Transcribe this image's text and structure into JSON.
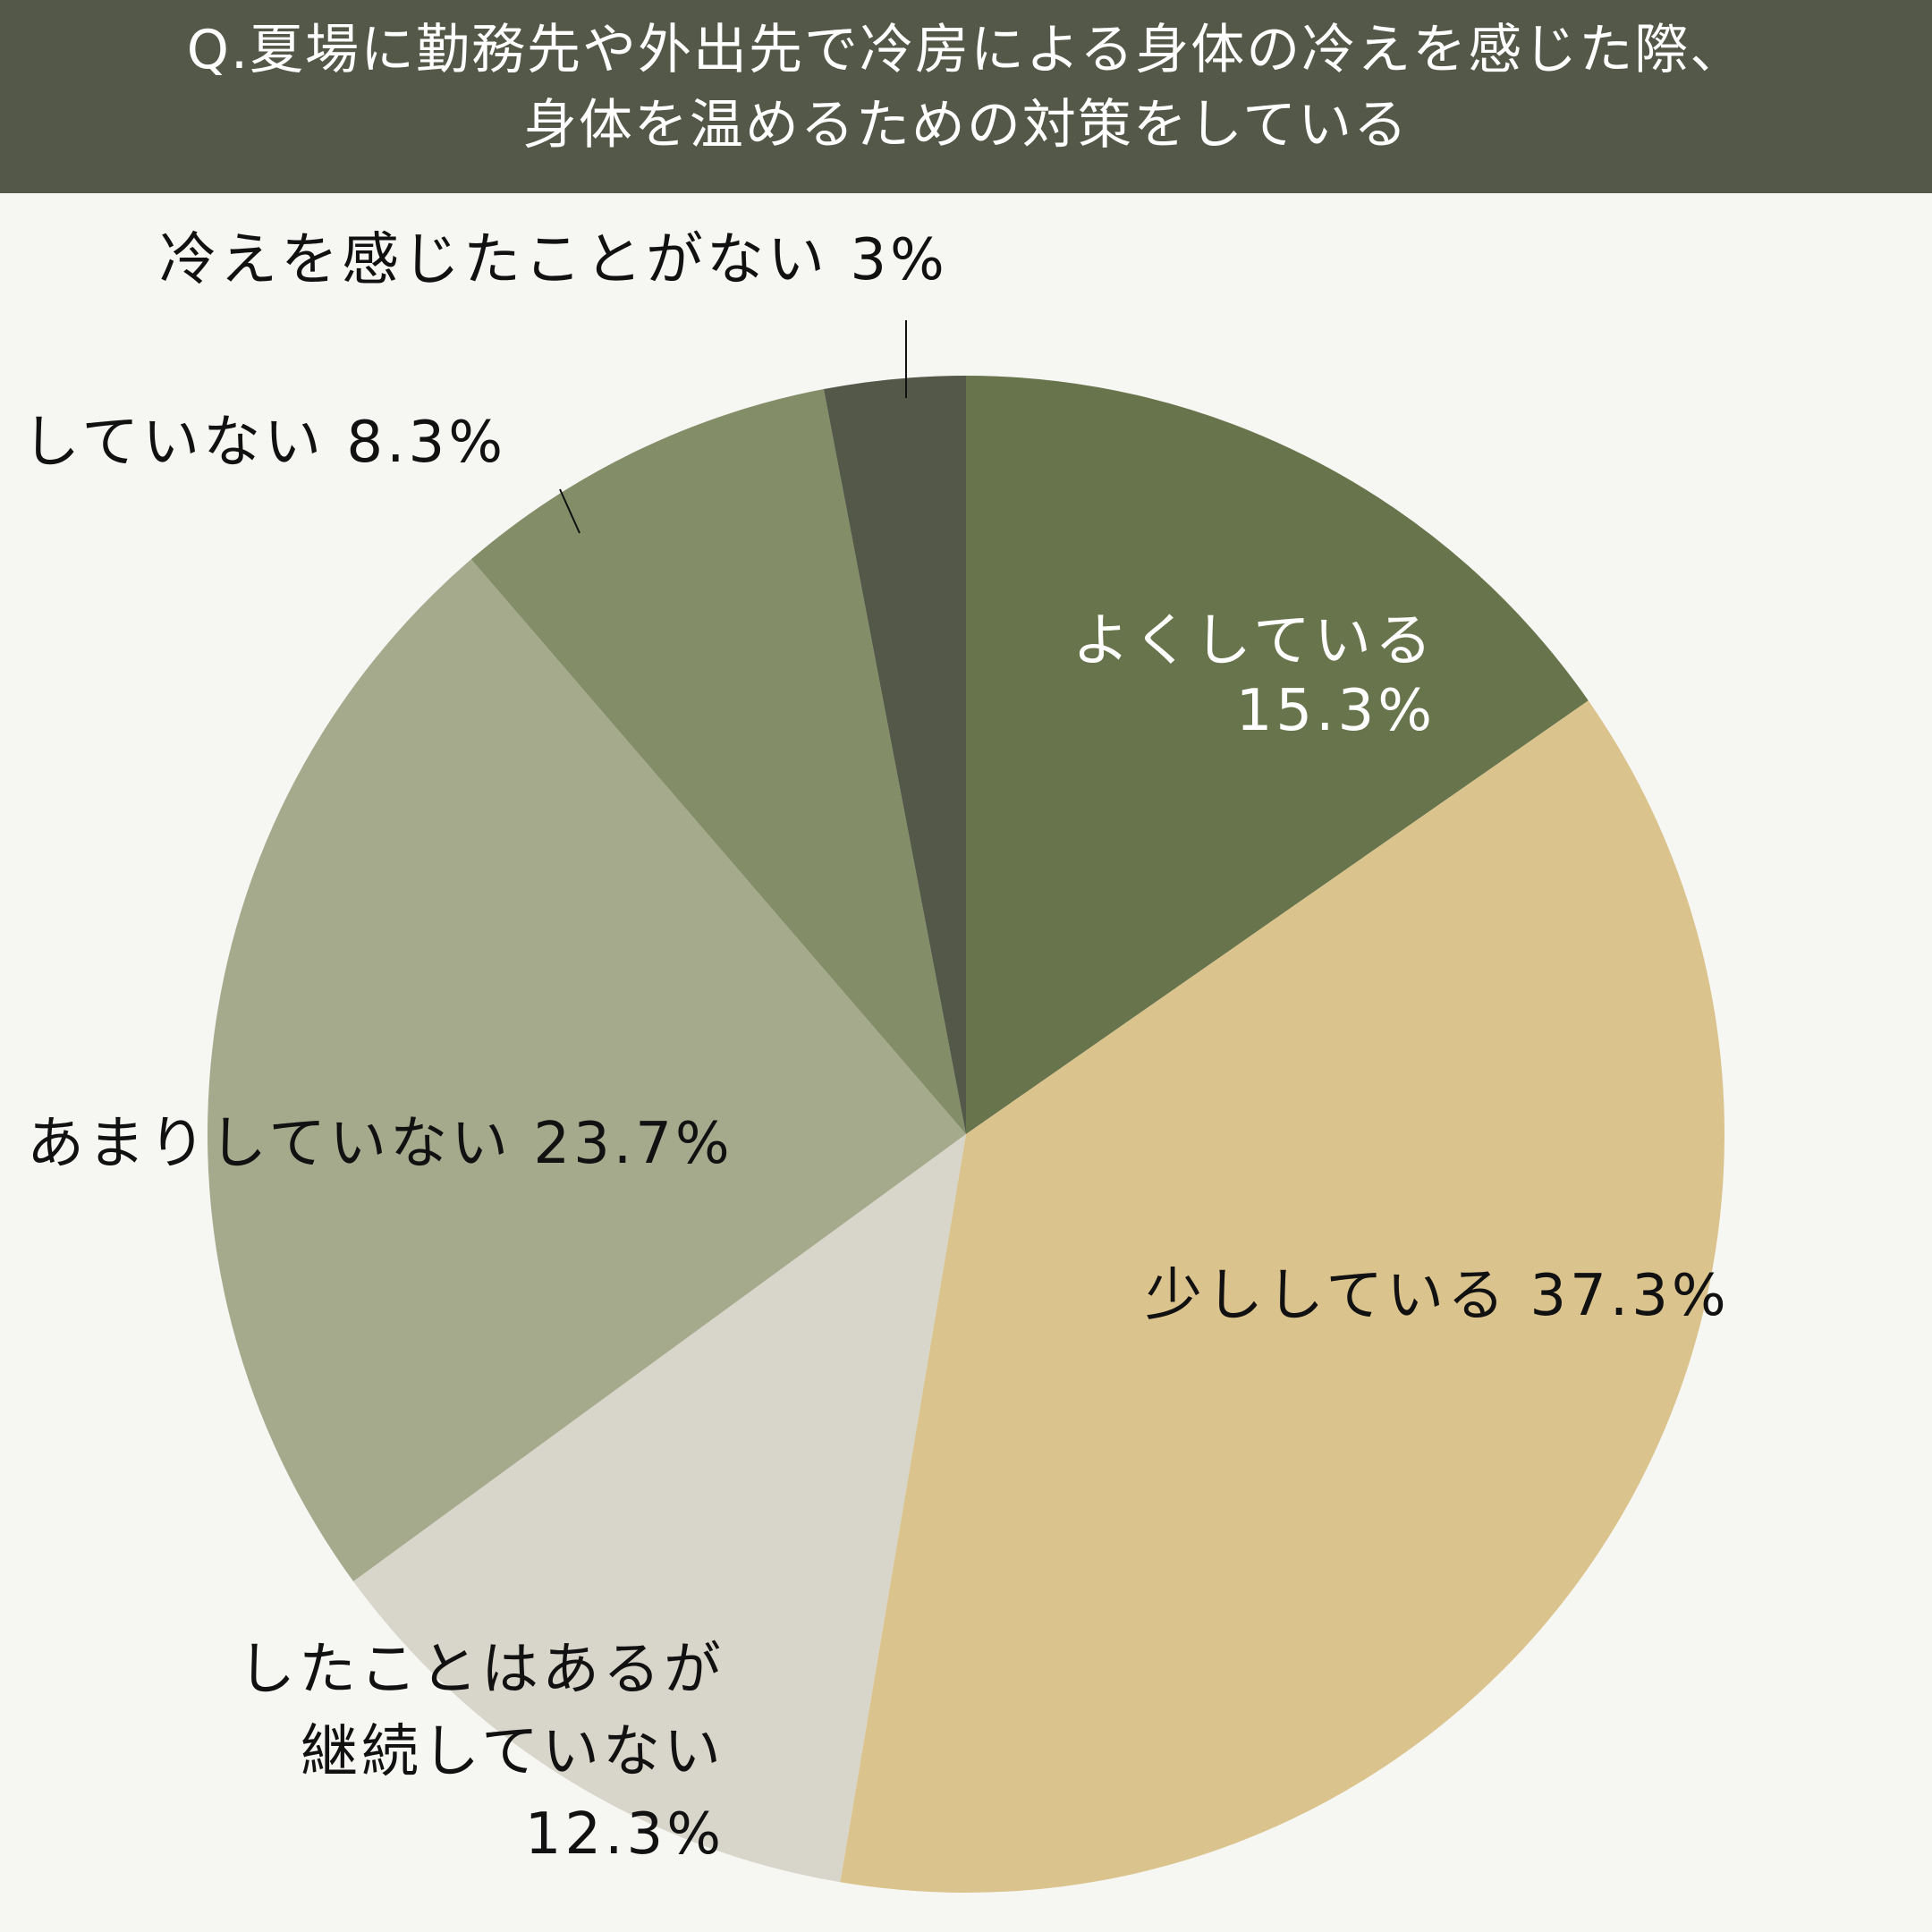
{
  "title": {
    "line1": "Q.夏場に勤務先や外出先で冷房による身体の冷えを感じた際、",
    "line2": "身体を温めるための対策をしている"
  },
  "colors": {
    "header_bg": "#545848",
    "background": "#f6f6f2",
    "label_dark": "#111111",
    "label_light": "#ffffff"
  },
  "chart_data": {
    "type": "pie",
    "start": "12 o'clock",
    "direction": "clockwise",
    "slices": [
      {
        "label": "よくしている",
        "value": 15.3,
        "value_text": "15.3%",
        "color": "#68744c"
      },
      {
        "label": "少ししている",
        "value": 37.3,
        "value_text": "37.3%",
        "color": "#dbc38d"
      },
      {
        "label": "したことはあるが継続していない",
        "value": 12.3,
        "value_text": "12.3%",
        "color": "#d8d6ca"
      },
      {
        "label": "あまりしていない",
        "value": 23.7,
        "value_text": "23.7%",
        "color": "#a5aa8d"
      },
      {
        "label": "していない",
        "value": 8.3,
        "value_text": "8.3%",
        "color": "#838d67"
      },
      {
        "label": "冷えを感じたことがない",
        "value": 3,
        "value_text": "3%",
        "color": "#545848"
      }
    ],
    "labels": [
      {
        "lines": [
          "よくしている",
          "15.3%"
        ],
        "color": "light",
        "anchor": "end"
      },
      {
        "lines": [
          "少ししている  37.3%"
        ],
        "color": "dark",
        "anchor": "start"
      },
      {
        "lines": [
          "したことはあるが",
          "継続していない",
          "12.3%"
        ],
        "color": "dark",
        "anchor": "end"
      },
      {
        "lines": [
          "あまりしていない  23.7%"
        ],
        "color": "dark",
        "anchor": "start"
      },
      {
        "lines": [
          "していない  8.3%"
        ],
        "color": "dark",
        "anchor": "start"
      },
      {
        "lines": [
          "冷えを感じたことがない 3%"
        ],
        "color": "dark",
        "anchor": "start"
      }
    ]
  }
}
